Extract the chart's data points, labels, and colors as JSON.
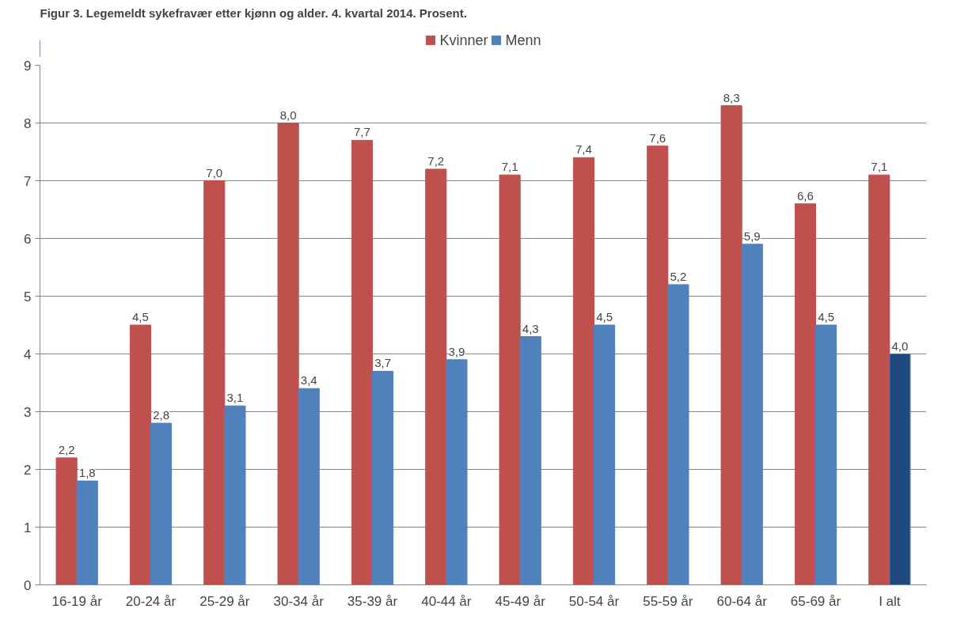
{
  "chart_data": {
    "type": "bar",
    "title": "Figur 3. Legemeldt sykefravær etter kjønn og alder. 4. kvartal 2014. Prosent.",
    "categories": [
      "16-19 år",
      "20-24 år",
      "25-29 år",
      "30-34 år",
      "35-39 år",
      "40-44 år",
      "45-49 år",
      "50-54 år",
      "55-59 år",
      "60-64 år",
      "65-69 år",
      "I alt"
    ],
    "series": [
      {
        "name": "Kvinner",
        "color": "#c0504d",
        "colors": [
          "#c0504d",
          "#c0504d",
          "#c0504d",
          "#c0504d",
          "#c0504d",
          "#c0504d",
          "#c0504d",
          "#c0504d",
          "#c0504d",
          "#c0504d",
          "#c0504d",
          "#c0504d"
        ],
        "values": [
          2.2,
          4.5,
          7.0,
          8.0,
          7.7,
          7.2,
          7.1,
          7.4,
          7.6,
          8.3,
          6.6,
          7.1
        ],
        "value_labels": [
          "2,2",
          "4,5",
          "7,0",
          "8,0",
          "7,7",
          "7,2",
          "7,1",
          "7,4",
          "7,6",
          "8,3",
          "6,6",
          "7,1"
        ]
      },
      {
        "name": "Menn",
        "color": "#4f81bd",
        "colors": [
          "#4f81bd",
          "#4f81bd",
          "#4f81bd",
          "#4f81bd",
          "#4f81bd",
          "#4f81bd",
          "#4f81bd",
          "#4f81bd",
          "#4f81bd",
          "#4f81bd",
          "#4f81bd",
          "#1f497d"
        ],
        "values": [
          1.8,
          2.8,
          3.1,
          3.4,
          3.7,
          3.9,
          4.3,
          4.5,
          5.2,
          5.9,
          4.5,
          4.0
        ],
        "value_labels": [
          "1,8",
          "2,8",
          "3,1",
          "3,4",
          "3,7",
          "3,9",
          "4,3",
          "4,5",
          "5,2",
          "5,9",
          "4,5",
          "4,0"
        ]
      }
    ],
    "ylim": [
      0,
      9
    ],
    "yticks": [
      0,
      1,
      2,
      3,
      4,
      5,
      6,
      7,
      8,
      9
    ],
    "grid": "y",
    "legend": "top"
  }
}
